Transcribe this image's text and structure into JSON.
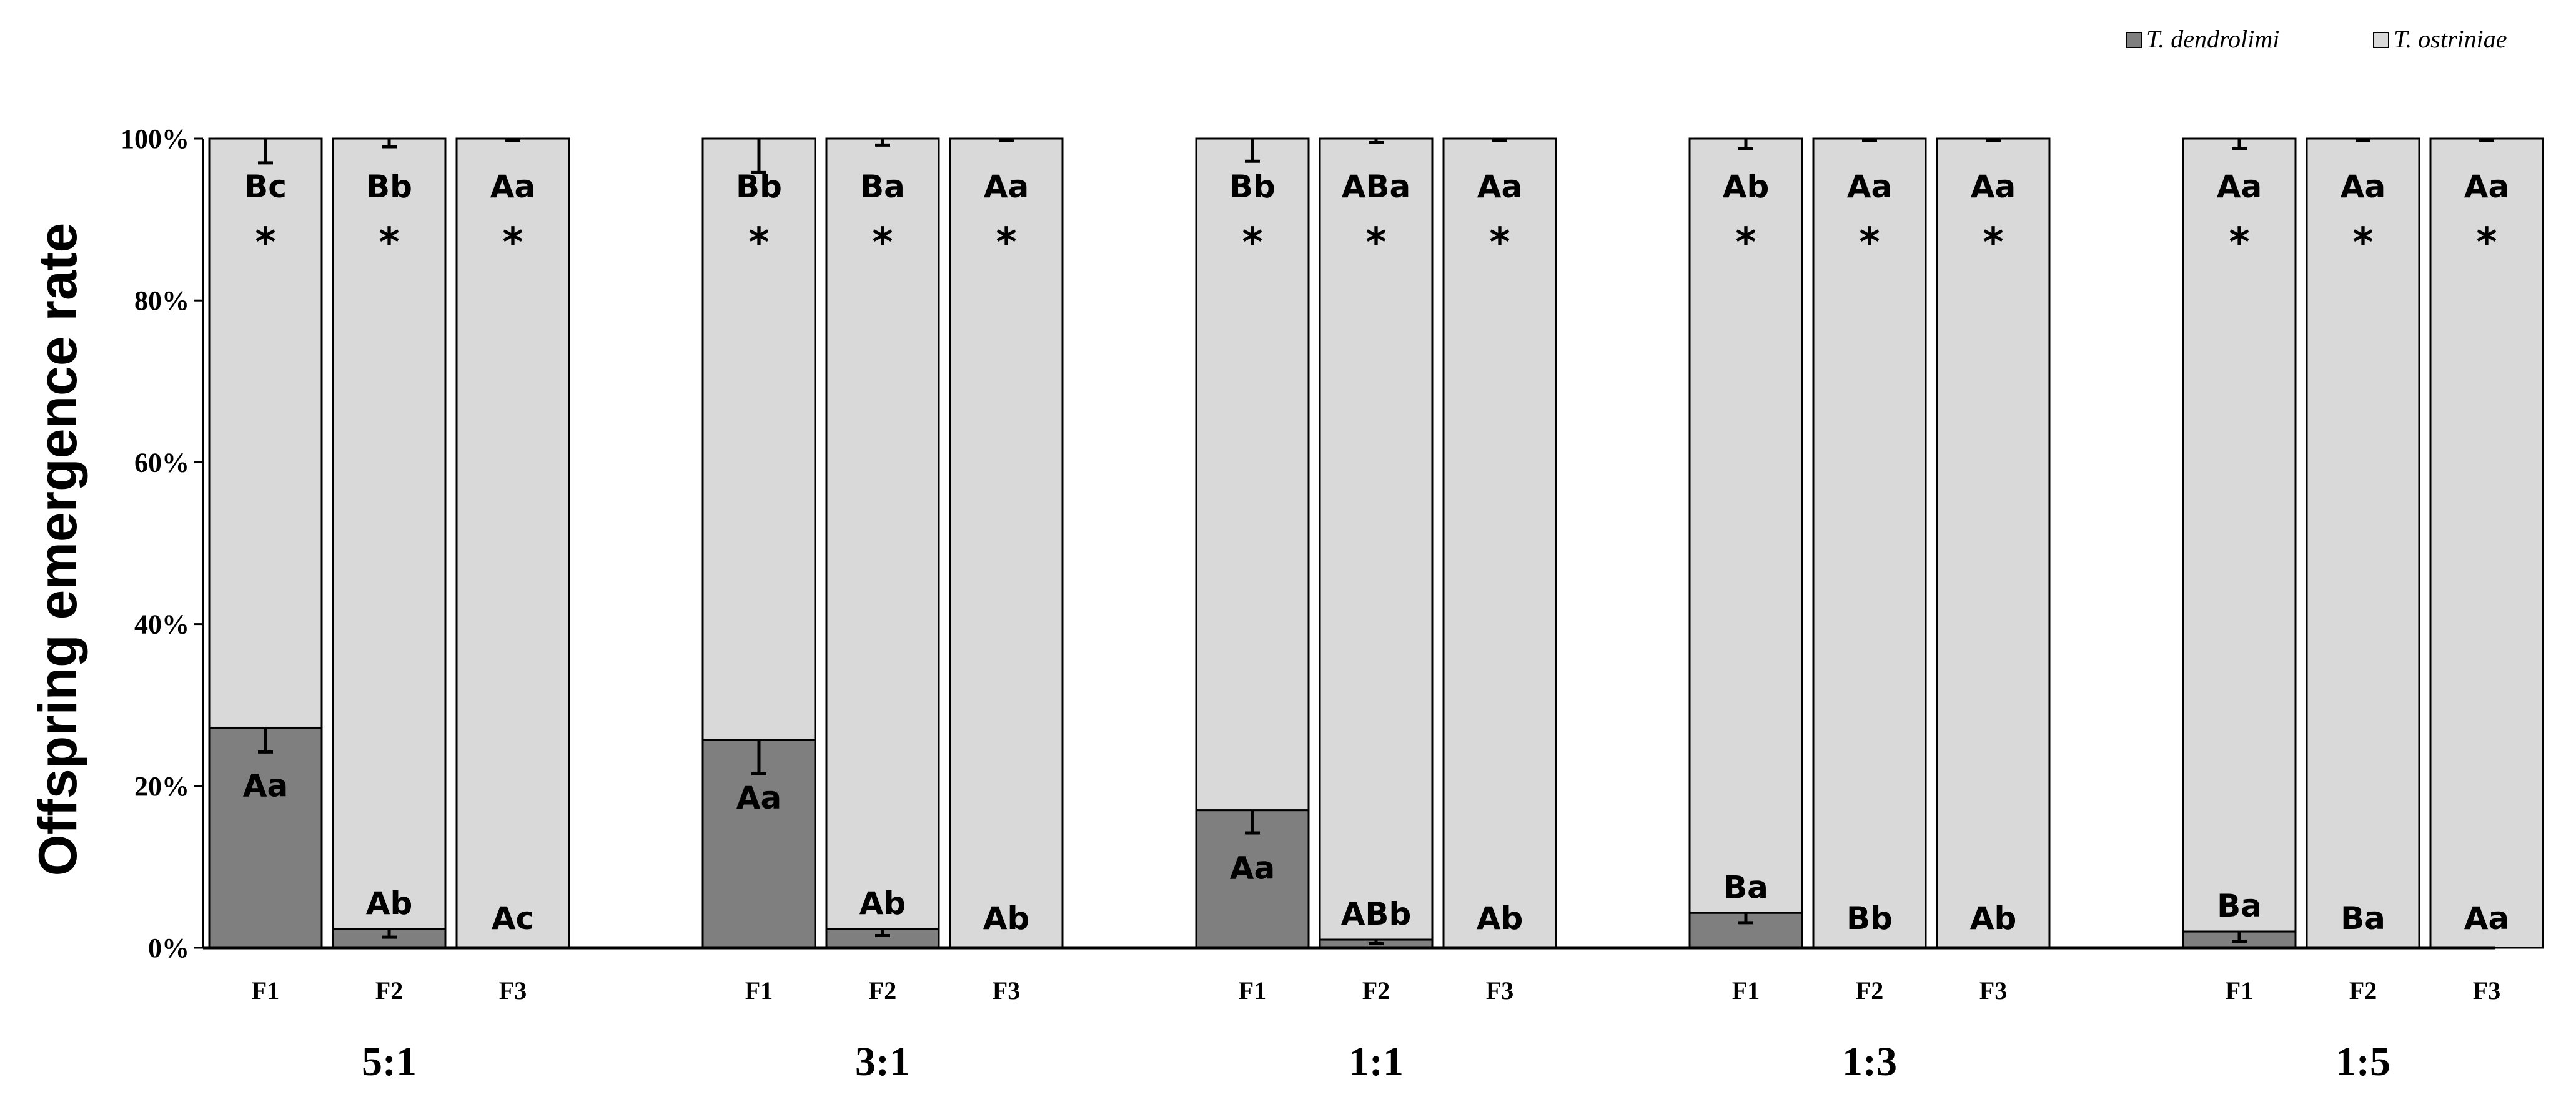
{
  "chart_data": {
    "type": "bar",
    "stacked": true,
    "percent_stacked": true,
    "ylabel": "Offspring emergence rate",
    "ylim": [
      0,
      100
    ],
    "y_ticks": [
      "0%",
      "20%",
      "40%",
      "60%",
      "80%",
      "100%"
    ],
    "legend": {
      "placement": "top-right",
      "entries": [
        {
          "name": "T. dendrolimi",
          "color": "#7f7f7f"
        },
        {
          "name": "T. ostriniae",
          "color": "#d9d9d9"
        }
      ]
    },
    "groups": [
      {
        "label": "5:1",
        "bars": [
          {
            "category": "F1",
            "dendrolimi": 27.2,
            "dendrolimi_err": 3.0,
            "ostriniae_err": 3.0,
            "dendrolimi_letter": "Aa",
            "ostriniae_letter": "Bc",
            "significant": "*"
          },
          {
            "category": "F2",
            "dendrolimi": 2.3,
            "dendrolimi_err": 1.0,
            "ostriniae_err": 1.0,
            "dendrolimi_letter": "Ab",
            "ostriniae_letter": "Bb",
            "significant": "*"
          },
          {
            "category": "F3",
            "dendrolimi": 0.0,
            "dendrolimi_err": 0,
            "ostriniae_err": 0.2,
            "dendrolimi_letter": "Ac",
            "ostriniae_letter": "Aa",
            "significant": "*"
          }
        ]
      },
      {
        "label": "3:1",
        "bars": [
          {
            "category": "F1",
            "dendrolimi": 25.7,
            "dendrolimi_err": 4.2,
            "ostriniae_err": 4.2,
            "dendrolimi_letter": "Aa",
            "ostriniae_letter": "Bb",
            "significant": "*"
          },
          {
            "category": "F2",
            "dendrolimi": 2.3,
            "dendrolimi_err": 0.8,
            "ostriniae_err": 0.8,
            "dendrolimi_letter": "Ab",
            "ostriniae_letter": "Ba",
            "significant": "*"
          },
          {
            "category": "F3",
            "dendrolimi": 0.0,
            "dendrolimi_err": 0,
            "ostriniae_err": 0.2,
            "dendrolimi_letter": "Ab",
            "ostriniae_letter": "Aa",
            "significant": "*"
          }
        ]
      },
      {
        "label": "1:1",
        "bars": [
          {
            "category": "F1",
            "dendrolimi": 17.0,
            "dendrolimi_err": 2.8,
            "ostriniae_err": 2.8,
            "dendrolimi_letter": "Aa",
            "ostriniae_letter": "Bb",
            "significant": "*"
          },
          {
            "category": "F2",
            "dendrolimi": 1.0,
            "dendrolimi_err": 0.5,
            "ostriniae_err": 0.5,
            "dendrolimi_letter": "ABb",
            "ostriniae_letter": "ABa",
            "significant": "*"
          },
          {
            "category": "F3",
            "dendrolimi": 0.0,
            "dendrolimi_err": 0,
            "ostriniae_err": 0.2,
            "dendrolimi_letter": "Ab",
            "ostriniae_letter": "Aa",
            "significant": "*"
          }
        ]
      },
      {
        "label": "1:3",
        "bars": [
          {
            "category": "F1",
            "dendrolimi": 4.3,
            "dendrolimi_err": 1.2,
            "ostriniae_err": 1.2,
            "dendrolimi_letter": "Ba",
            "ostriniae_letter": "Ab",
            "significant": "*"
          },
          {
            "category": "F2",
            "dendrolimi": 0.0,
            "dendrolimi_err": 0,
            "ostriniae_err": 0.2,
            "dendrolimi_letter": "Bb",
            "ostriniae_letter": "Aa",
            "significant": "*"
          },
          {
            "category": "F3",
            "dendrolimi": 0.0,
            "dendrolimi_err": 0,
            "ostriniae_err": 0.2,
            "dendrolimi_letter": "Ab",
            "ostriniae_letter": "Aa",
            "significant": "*"
          }
        ]
      },
      {
        "label": "1:5",
        "bars": [
          {
            "category": "F1",
            "dendrolimi": 2.0,
            "dendrolimi_err": 1.2,
            "ostriniae_err": 1.2,
            "dendrolimi_letter": "Ba",
            "ostriniae_letter": "Aa",
            "significant": "*"
          },
          {
            "category": "F2",
            "dendrolimi": 0.0,
            "dendrolimi_err": 0,
            "ostriniae_err": 0.2,
            "dendrolimi_letter": "Ba",
            "ostriniae_letter": "Aa",
            "significant": "*"
          },
          {
            "category": "F3",
            "dendrolimi": 0.0,
            "dendrolimi_err": 0,
            "ostriniae_err": 0.2,
            "dendrolimi_letter": "Aa",
            "ostriniae_letter": "Aa",
            "significant": "*"
          }
        ]
      }
    ]
  }
}
